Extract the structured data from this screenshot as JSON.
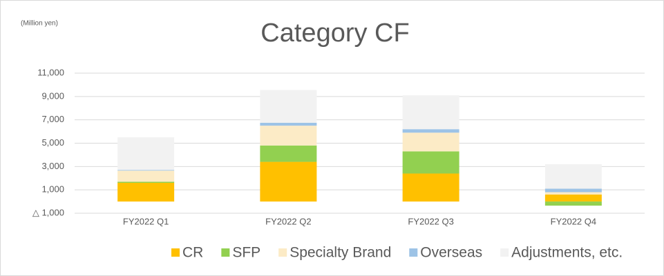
{
  "chart_data": {
    "type": "stacked_bar",
    "title": "Category CF",
    "unit_label": "(Million yen)",
    "categories": [
      "FY2022 Q1",
      "FY2022 Q2",
      "FY2022 Q3",
      "FY2022 Q4"
    ],
    "series": [
      {
        "name": "CR",
        "color": "#ffc000",
        "values": [
          1600,
          3400,
          2400,
          600
        ]
      },
      {
        "name": "SFP",
        "color": "#92d050",
        "values": [
          100,
          1400,
          1900,
          -350
        ]
      },
      {
        "name": "Specialty Brand",
        "color": "#fcebc6",
        "values": [
          950,
          1700,
          1600,
          200
        ]
      },
      {
        "name": "Overseas",
        "color": "#9dc3e6",
        "values": [
          60,
          250,
          300,
          300
        ]
      },
      {
        "name": "Adjustments, etc.",
        "color": "#f2f2f2",
        "values": [
          2800,
          2800,
          2900,
          2100
        ]
      }
    ],
    "ylim": [
      -1000,
      11000
    ],
    "yticks": [
      {
        "value": -1000,
        "label": "△ 1,000"
      },
      {
        "value": 1000,
        "label": "1,000"
      },
      {
        "value": 3000,
        "label": "3,000"
      },
      {
        "value": 5000,
        "label": "5,000"
      },
      {
        "value": 7000,
        "label": "7,000"
      },
      {
        "value": 9000,
        "label": "9,000"
      },
      {
        "value": 11000,
        "label": "11,000"
      }
    ],
    "grid": true,
    "legend": "bottom"
  }
}
